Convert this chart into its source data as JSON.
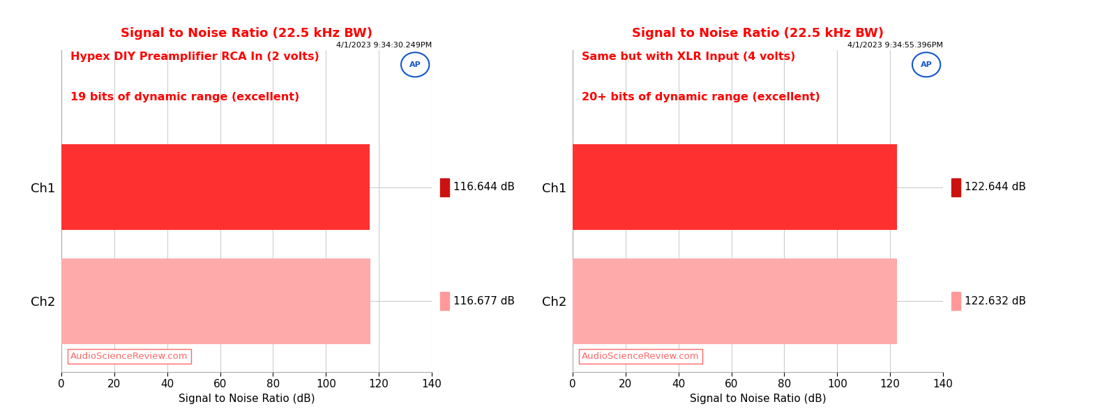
{
  "panels": [
    {
      "title": "Signal to Noise Ratio (22.5 kHz BW)",
      "timestamp": "4/1/2023 9:34:30.249PM",
      "subtitle_line1": "Hypex DIY Preamplifier RCA In (2 volts)",
      "subtitle_line2": "19 bits of dynamic range (excellent)",
      "channels": [
        "Ch1",
        "Ch2"
      ],
      "values": [
        116.644,
        116.677
      ],
      "labels": [
        "116.644 dB",
        "116.677 dB"
      ],
      "bar_colors": [
        "#FF3030",
        "#FFAAAA"
      ],
      "marker_colors": [
        "#CC1111",
        "#FF9999"
      ],
      "xlim": [
        0,
        140
      ],
      "xticks": [
        0,
        20,
        40,
        60,
        80,
        100,
        120,
        140
      ],
      "xlabel": "Signal to Noise Ratio (dB)",
      "watermark": "AudioScienceReview.com"
    },
    {
      "title": "Signal to Noise Ratio (22.5 kHz BW)",
      "timestamp": "4/1/2023 9:34:55.396PM",
      "subtitle_line1": "Same but with XLR Input (4 volts)",
      "subtitle_line2": "20+ bits of dynamic range (excellent)",
      "channels": [
        "Ch1",
        "Ch2"
      ],
      "values": [
        122.644,
        122.632
      ],
      "labels": [
        "122.644 dB",
        "122.632 dB"
      ],
      "bar_colors": [
        "#FF3030",
        "#FFAAAA"
      ],
      "marker_colors": [
        "#CC1111",
        "#FF9999"
      ],
      "xlim": [
        0,
        140
      ],
      "xticks": [
        0,
        20,
        40,
        60,
        80,
        100,
        120,
        140
      ],
      "xlabel": "Signal to Noise Ratio (dB)",
      "watermark": "AudioScienceReview.com"
    }
  ],
  "title_color": "#FF0000",
  "subtitle_color": "#FF0000",
  "timestamp_color": "#000000",
  "watermark_color": "#FF6666",
  "ap_text": "AP",
  "ap_color": "#1155CC",
  "ap_circle_color": "#FFFFFF",
  "ap_border_color": "#1155CC",
  "background_color": "#FFFFFF",
  "grid_color": "#CCCCCC",
  "ylabel_color": "#000000",
  "bar_height": 0.75
}
